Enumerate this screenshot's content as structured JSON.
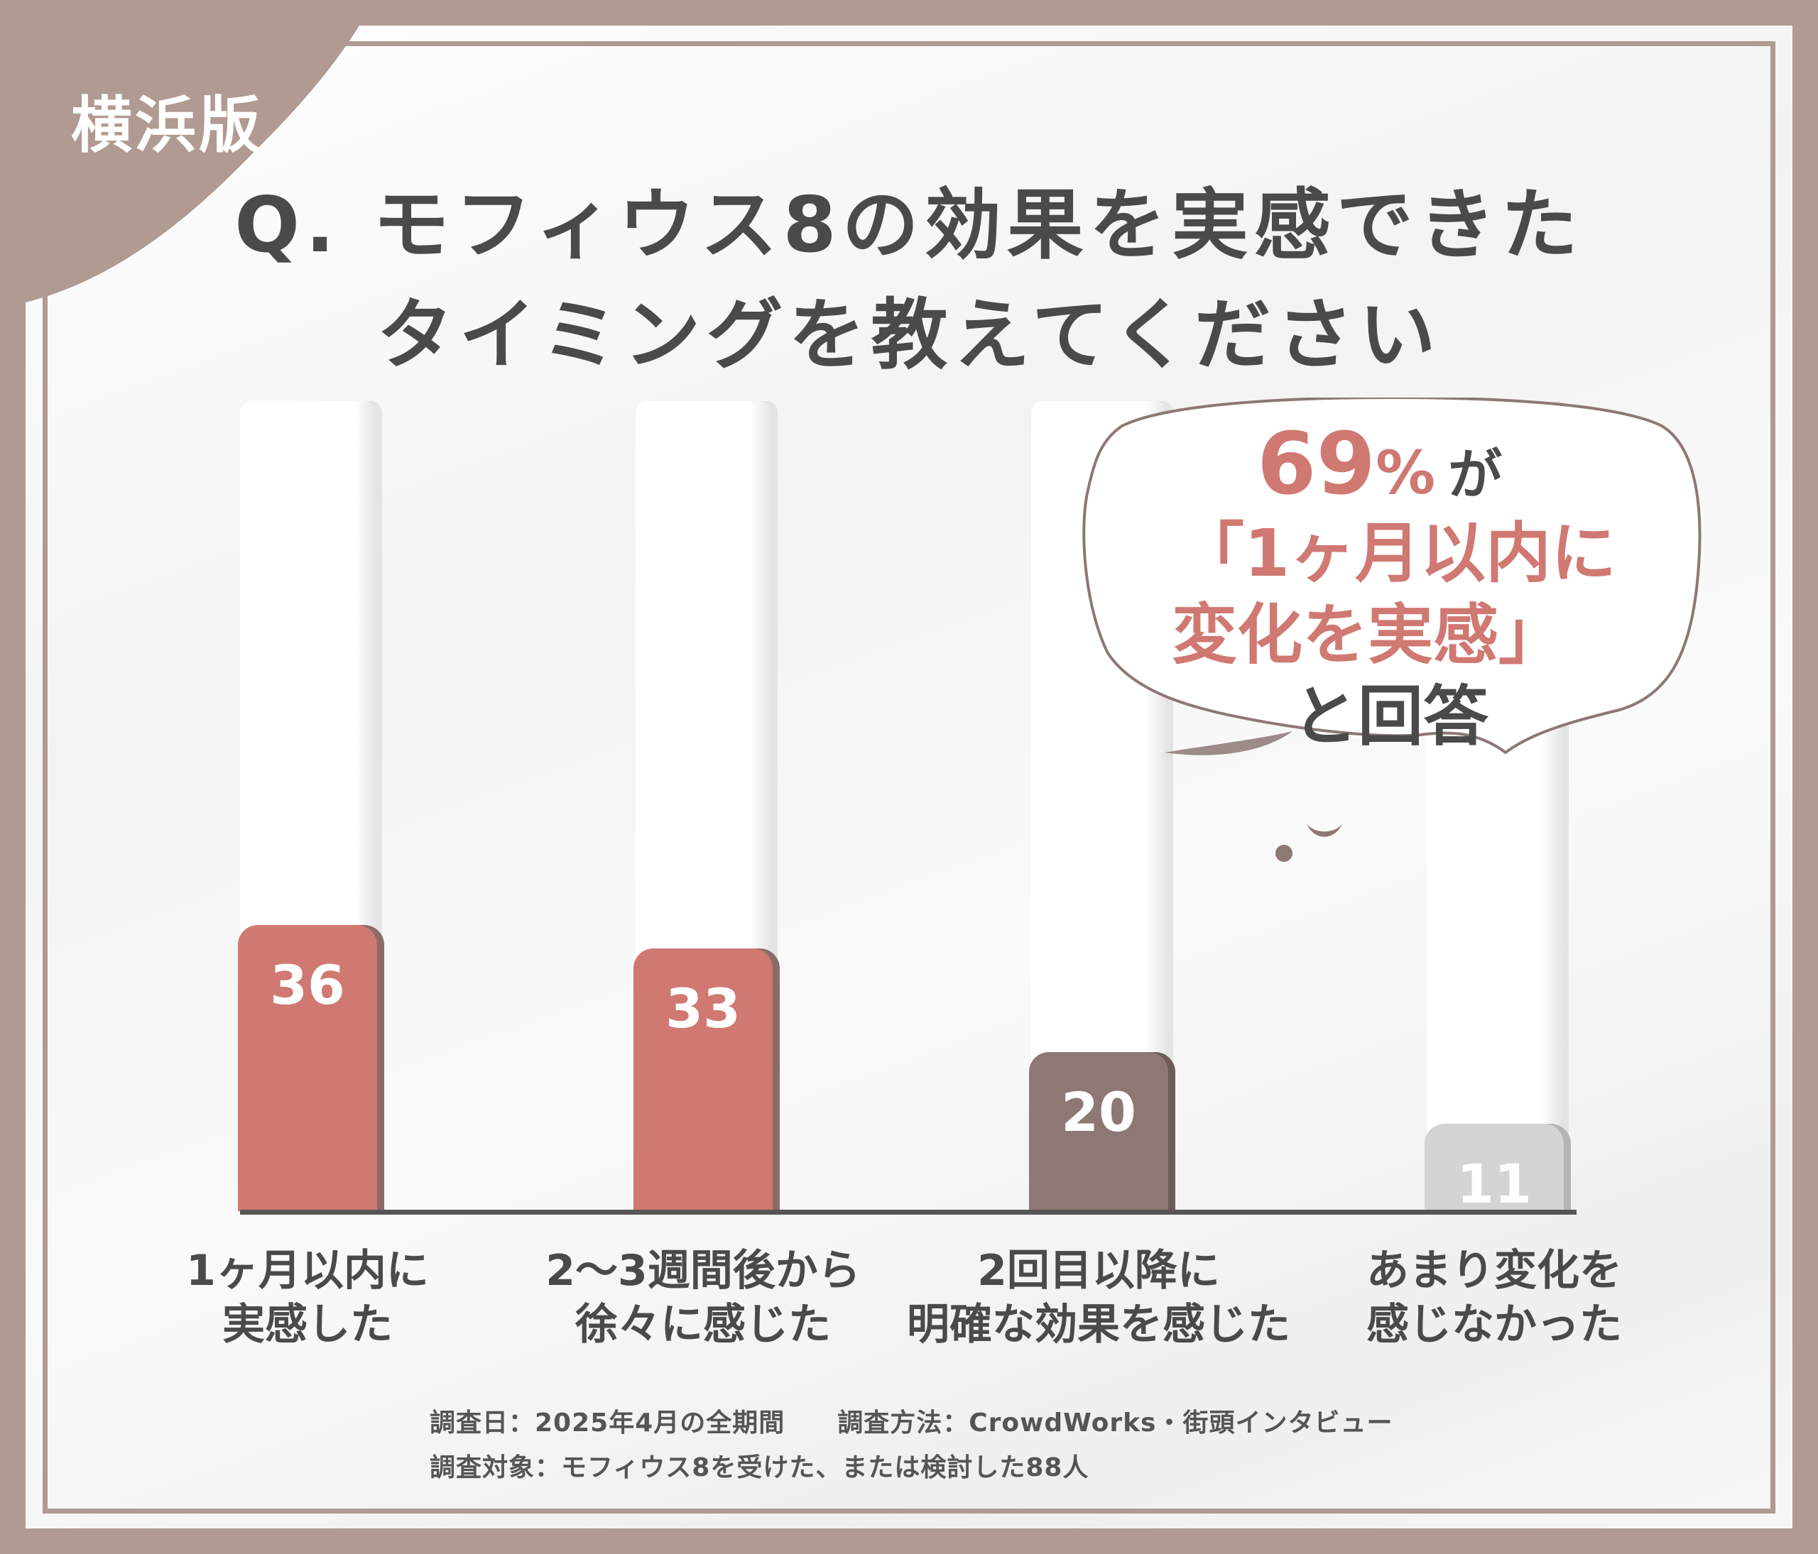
{
  "corner_label": "横浜版",
  "title": {
    "line1": "Q. モフィウス8の効果を実感できた",
    "line2": "タイミングを教えてください"
  },
  "callout": {
    "percent": "69",
    "percent_sign": "%",
    "ga": "が",
    "line2": "「1ヶ月以内に",
    "line3": "変化を実感」",
    "line4": "と回答"
  },
  "chart_data": {
    "type": "bar",
    "title": "Q. モフィウス8の効果を実感できたタイミングを教えてください",
    "categories": [
      "1ヶ月以内に実感した",
      "2〜3週間後から徐々に感じた",
      "2回目以降に明確な効果を感じた",
      "あまり変化を感じなかった"
    ],
    "category_lines": [
      [
        "1ヶ月以内に",
        "実感した"
      ],
      [
        "2〜3週間後から",
        "徐々に感じた"
      ],
      [
        "2回目以降に",
        "明確な効果を感じた"
      ],
      [
        "あまり変化を",
        "感じなかった"
      ]
    ],
    "values": [
      36,
      33,
      20,
      11
    ],
    "value_labels": [
      "36",
      "33",
      "20",
      "11"
    ],
    "colors": [
      "#d07872",
      "#d07872",
      "#8d7875",
      "#d4d4d4"
    ],
    "ylim": [
      0,
      100
    ],
    "grid": false,
    "legend": "none"
  },
  "footer": {
    "line1": "調査日：2025年4月の全期間　　調査方法：CrowdWorks・街頭インタビュー",
    "line2": "調査対象：モフィウス8を受けた、または検討した88人"
  },
  "colors": {
    "frame": "#b09a91",
    "accent": "#d07872",
    "dark_bar": "#8d7875",
    "light_bar": "#d4d4d4",
    "text": "#4a4a4a"
  }
}
